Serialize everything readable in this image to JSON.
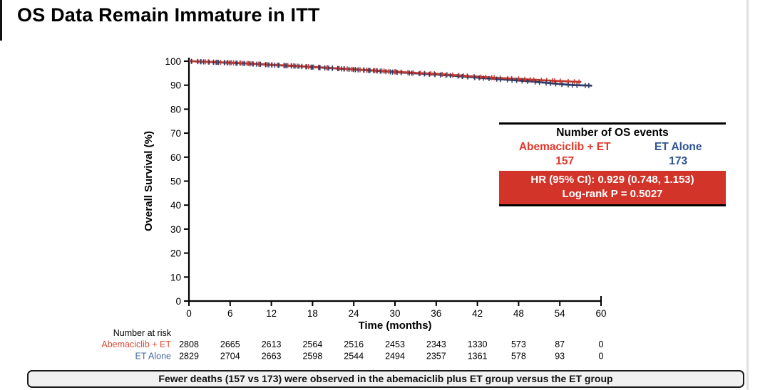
{
  "page": {
    "title": "OS Data Remain Immature in ITT"
  },
  "events_box": {
    "header": "Number of OS events",
    "group1_label": "Abemaciclib + ET",
    "group1_value": "157",
    "group1_color": "#E2372B",
    "group2_label": "ET Alone",
    "group2_value": "173",
    "group2_color": "#2F5394",
    "hr_text": "HR (95% CI): 0.929 (0.748, 1.153)",
    "logrank_text": "Log-rank P = 0.5027",
    "highlight_bg": "#D2342A"
  },
  "summary_banner": {
    "text": "Fewer deaths (157 vs 173) were observed in the abemaciclib plus ET group versus the ET group"
  },
  "chart_data": {
    "type": "line",
    "subtype": "kaplan-meier",
    "title": "",
    "xlabel": "Time (months)",
    "ylabel": "Overall Survival (%)",
    "xlim": [
      0,
      60
    ],
    "ylim": [
      0,
      100
    ],
    "xticks": [
      0,
      6,
      12,
      18,
      24,
      30,
      36,
      42,
      48,
      54,
      60
    ],
    "yticks": [
      0,
      10,
      20,
      30,
      40,
      50,
      60,
      70,
      80,
      90,
      100
    ],
    "grid": false,
    "legend_position": "none",
    "series": [
      {
        "name": "Abemaciclib + ET",
        "color": "#C5372C",
        "x": [
          0,
          3,
          6,
          9,
          12,
          15,
          18,
          21,
          24,
          27,
          30,
          33,
          36,
          39,
          42,
          45,
          48,
          51,
          54,
          57.1
        ],
        "y": [
          100,
          99.7,
          99.4,
          99.0,
          98.5,
          98.1,
          97.6,
          97.1,
          96.6,
          96.1,
          95.6,
          95.1,
          94.7,
          94.1,
          93.5,
          93.0,
          92.6,
          92.1,
          91.7,
          91.3
        ]
      },
      {
        "name": "ET Alone",
        "color": "#2B3A66",
        "x": [
          0,
          3,
          6,
          9,
          12,
          15,
          18,
          21,
          24,
          27,
          30,
          33,
          36,
          39,
          42,
          45,
          48,
          51,
          54,
          56,
          58.7
        ],
        "y": [
          100,
          99.6,
          99.3,
          98.9,
          98.4,
          98.0,
          97.5,
          97.0,
          96.5,
          96.0,
          95.4,
          94.9,
          94.4,
          93.8,
          93.1,
          92.5,
          91.9,
          91.2,
          90.4,
          90.0,
          89.8
        ]
      }
    ],
    "risk_table": {
      "label": "Number at risk",
      "timepoints": [
        0,
        6,
        12,
        18,
        24,
        30,
        36,
        42,
        48,
        54,
        60
      ],
      "rows": [
        {
          "name": "Abemaciclib + ET",
          "color": "#DD4A36",
          "values": [
            2808,
            2665,
            2613,
            2564,
            2516,
            2453,
            2343,
            1330,
            573,
            87,
            0
          ]
        },
        {
          "name": "ET Alone",
          "color": "#46679F",
          "values": [
            2829,
            2704,
            2663,
            2598,
            2544,
            2494,
            2357,
            1361,
            578,
            93,
            0
          ]
        }
      ]
    }
  }
}
